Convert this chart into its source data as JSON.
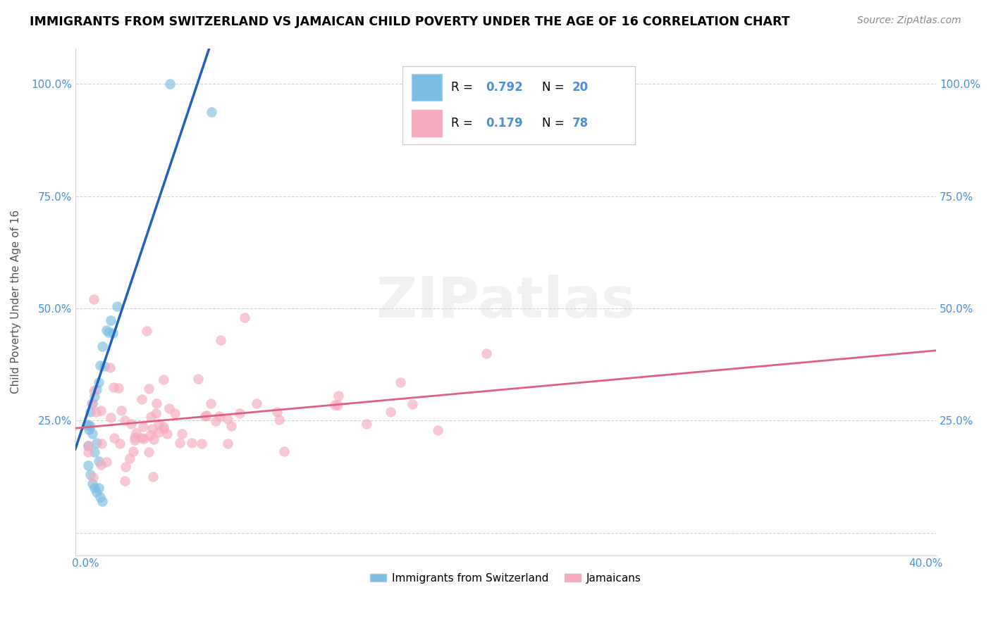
{
  "title": "IMMIGRANTS FROM SWITZERLAND VS JAMAICAN CHILD POVERTY UNDER THE AGE OF 16 CORRELATION CHART",
  "source": "Source: ZipAtlas.com",
  "ylabel": "Child Poverty Under the Age of 16",
  "xmin": -0.005,
  "xmax": 0.405,
  "ymin": -0.05,
  "ymax": 1.08,
  "ytick_vals": [
    0.0,
    0.25,
    0.5,
    0.75,
    1.0
  ],
  "ytick_labels": [
    "",
    "25.0%",
    "50.0%",
    "75.0%",
    "100.0%"
  ],
  "xtick_vals": [
    0.0,
    0.4
  ],
  "xtick_labels": [
    "0.0%",
    "40.0%"
  ],
  "legend_r1": "0.792",
  "legend_n1": "20",
  "legend_r2": "0.179",
  "legend_n2": "78",
  "blue_color": "#7bbde0",
  "pink_color": "#f5aabe",
  "blue_line_color": "#2060c0",
  "pink_line_color": "#e06080",
  "tick_color": "#4a90d9",
  "watermark_text": "ZIPatlas",
  "bottom_label1": "Immigrants from Switzerland",
  "bottom_label2": "Jamaicans"
}
